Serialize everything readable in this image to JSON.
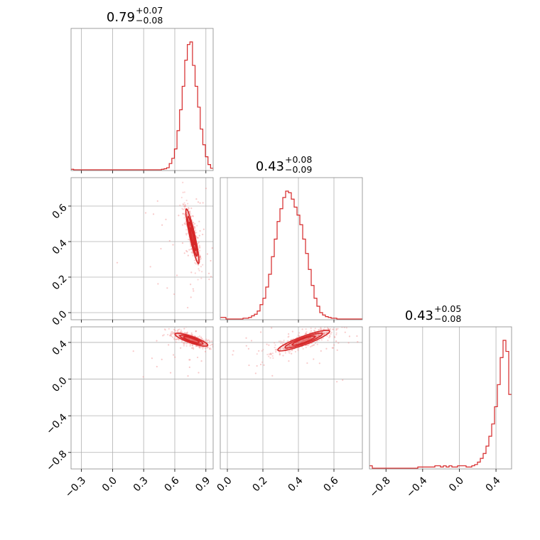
{
  "colors": {
    "accent": "#d62728",
    "grid": "#b0b0b0",
    "frame": "#888888",
    "points": "#f08a8a"
  },
  "chart_data": {
    "type": "corner-plot",
    "grid": true,
    "parameters": [
      {
        "title_value": "0.79",
        "upper": "+0.07",
        "lower": "−0.08",
        "range": [
          -0.4,
          0.97
        ],
        "ticks": [
          -0.3,
          0.0,
          0.3,
          0.6,
          0.9
        ],
        "tick_labels": [
          "−0.3",
          "0.0",
          "0.3",
          "0.6",
          "0.9"
        ]
      },
      {
        "title_value": "0.43",
        "upper": "+0.08",
        "lower": "−0.09",
        "range": [
          -0.04,
          0.76
        ],
        "ticks": [
          0.0,
          0.2,
          0.4,
          0.6
        ],
        "tick_labels": [
          "0.0",
          "0.2",
          "0.4",
          "0.6"
        ]
      },
      {
        "title_value": "0.43",
        "upper": "+0.05",
        "lower": "−0.08",
        "range": [
          -0.98,
          0.57
        ],
        "ticks": [
          -0.8,
          -0.4,
          0.0,
          0.4
        ],
        "tick_labels": [
          "−0.8",
          "−0.4",
          "0.0",
          "0.4"
        ]
      }
    ],
    "histograms": [
      {
        "param": 0,
        "edges_range": [
          -0.4,
          0.97
        ],
        "bins": 55,
        "counts": [
          1,
          0,
          0,
          0,
          0,
          0,
          0,
          0,
          0,
          0,
          0,
          0,
          0,
          0,
          0,
          0,
          0,
          0,
          0,
          0,
          0,
          0,
          0,
          0,
          0,
          0,
          0,
          0,
          0,
          0,
          0,
          0,
          0,
          0,
          0,
          1,
          2,
          4,
          12,
          22,
          40,
          75,
          115,
          160,
          210,
          240,
          245,
          200,
          160,
          120,
          78,
          48,
          25,
          10,
          3
        ]
      },
      {
        "param": 1,
        "edges_range": [
          -0.04,
          0.76
        ],
        "bins": 50,
        "counts": [
          2,
          2,
          0,
          0,
          0,
          0,
          0,
          0,
          1,
          1,
          2,
          4,
          6,
          10,
          18,
          26,
          40,
          56,
          78,
          100,
          122,
          138,
          152,
          160,
          158,
          150,
          140,
          130,
          118,
          100,
          82,
          62,
          42,
          26,
          16,
          8,
          5,
          3,
          2,
          1,
          1,
          0,
          0,
          0,
          0,
          0,
          0,
          0,
          0,
          0
        ]
      },
      {
        "param": 2,
        "edges_range": [
          -0.98,
          0.57
        ],
        "bins": 50,
        "counts": [
          2,
          0,
          0,
          0,
          0,
          0,
          0,
          0,
          0,
          0,
          0,
          0,
          0,
          0,
          0,
          0,
          0,
          1,
          1,
          1,
          1,
          1,
          1,
          2,
          2,
          1,
          2,
          1,
          2,
          1,
          1,
          2,
          2,
          2,
          1,
          1,
          2,
          3,
          5,
          8,
          12,
          18,
          26,
          36,
          50,
          68,
          90,
          104,
          95,
          60
        ]
      }
    ],
    "contours": [
      {
        "row": 1,
        "col": 0,
        "center": [
          0.77,
          0.43
        ],
        "major_direction": [
          0.36,
          -0.93
        ],
        "levels": [
          {
            "a": 0.165,
            "b": 0.024
          },
          {
            "a": 0.12,
            "b": 0.016
          },
          {
            "a": 0.085,
            "b": 0.011
          },
          {
            "a": 0.05,
            "b": 0.007
          }
        ]
      },
      {
        "row": 2,
        "col": 0,
        "center": [
          0.76,
          0.43
        ],
        "major_direction": [
          0.93,
          -0.37
        ],
        "levels": [
          {
            "a": 0.17,
            "b": 0.035
          },
          {
            "a": 0.12,
            "b": 0.024
          },
          {
            "a": 0.08,
            "b": 0.016
          }
        ]
      },
      {
        "row": 2,
        "col": 1,
        "center": [
          0.43,
          0.42
        ],
        "major_direction": [
          0.8,
          0.6
        ],
        "levels": [
          {
            "a": 0.18,
            "b": 0.04
          },
          {
            "a": 0.13,
            "b": 0.028
          },
          {
            "a": 0.08,
            "b": 0.018
          }
        ]
      }
    ]
  }
}
